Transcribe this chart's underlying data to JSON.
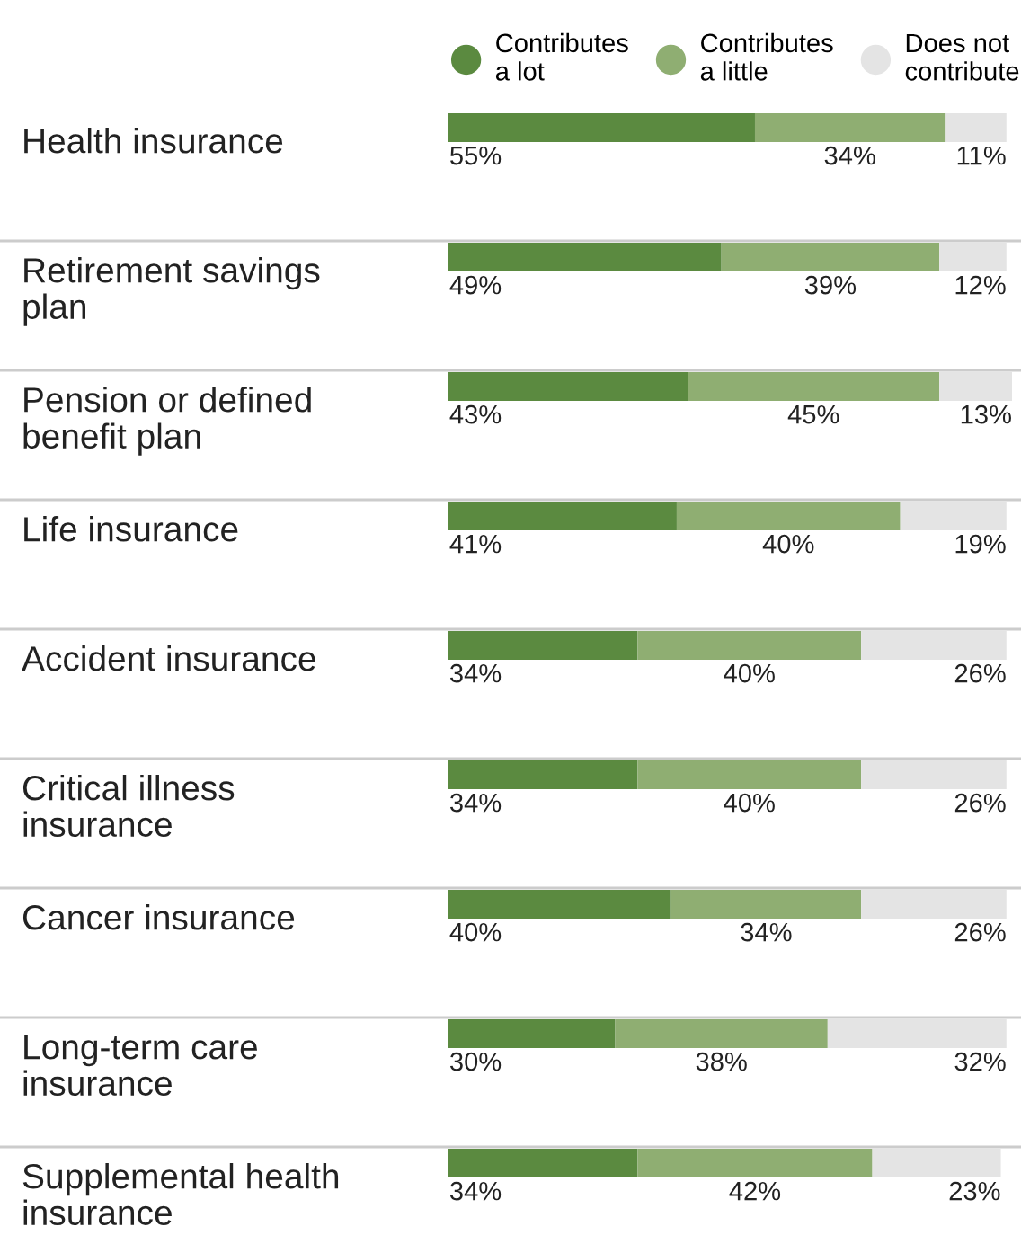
{
  "chart_data": {
    "type": "bar",
    "orientation": "horizontal",
    "stacked": true,
    "legend": "top",
    "categories": [
      "Health insurance",
      "Retirement savings plan",
      "Pension or defined benefit plan",
      "Life insurance",
      "Accident insurance",
      "Critical illness insurance",
      "Cancer insurance",
      "Long-term care insurance",
      "Supplemental health insurance"
    ],
    "series": [
      {
        "name": "Contributes\na lot",
        "color": "#5b8a40",
        "values": [
          55,
          49,
          43,
          41,
          34,
          34,
          40,
          30,
          34
        ],
        "value_labels": [
          "55%",
          "49%",
          "43%",
          "41%",
          "34%",
          "34%",
          "40%",
          "30%",
          "34%"
        ]
      },
      {
        "name": "Contributes\na little",
        "color": "#8fae72",
        "values": [
          34,
          39,
          45,
          40,
          40,
          40,
          34,
          38,
          42
        ],
        "value_labels": [
          "34%",
          "39%",
          "45%",
          "40%",
          "40%",
          "40%",
          "34%",
          "38%",
          "42%"
        ]
      },
      {
        "name": "Does not\ncontribute",
        "color": "#e4e4e4",
        "values": [
          11,
          12,
          13,
          19,
          26,
          26,
          26,
          32,
          23
        ],
        "value_labels": [
          "11%",
          "12%",
          "13%",
          "19%",
          "26%",
          "26%",
          "26%",
          "32%",
          "23%"
        ]
      }
    ]
  }
}
